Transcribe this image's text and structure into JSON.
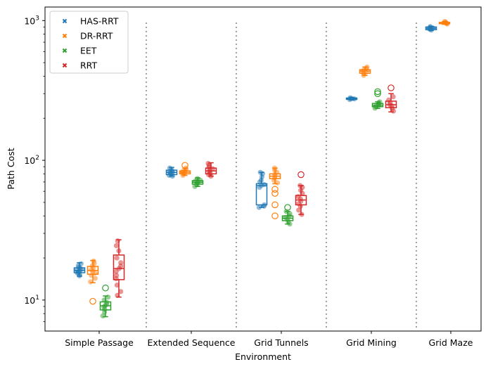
{
  "chart_data": {
    "type": "boxplot",
    "xlabel": "Environment",
    "ylabel": "Path Cost",
    "yscale": "log",
    "ylim": [
      6,
      1250
    ],
    "y_ticks": [
      {
        "value": 10,
        "base": "10",
        "exp": "1"
      },
      {
        "value": 100,
        "base": "10",
        "exp": "2"
      },
      {
        "value": 1000,
        "base": "10",
        "exp": "3"
      }
    ],
    "categories": [
      "Simple Passage",
      "Extended Sequence",
      "Grid Tunnels",
      "Grid Mining",
      "Grid Maze"
    ],
    "legend": [
      {
        "name": "HAS-RRT",
        "color": "#1f77b4"
      },
      {
        "name": "DR-RRT",
        "color": "#ff7f0e"
      },
      {
        "name": "EET",
        "color": "#2ca02c"
      },
      {
        "name": "RRT",
        "color": "#d62728"
      }
    ],
    "series": [
      {
        "name": "HAS-RRT",
        "color": "#1f77b4",
        "boxes": [
          {
            "category": "Simple Passage",
            "whisker_low": 14.8,
            "q1": 15.7,
            "median": 16.3,
            "q3": 17.0,
            "whisker_high": 18.5,
            "outliers": [],
            "points": [
              14.9,
              15.2,
              15.6,
              15.8,
              16.0,
              16.2,
              16.4,
              16.6,
              16.9,
              17.2,
              17.6,
              18.2
            ]
          },
          {
            "category": "Extended Sequence",
            "whisker_low": 77,
            "q1": 79,
            "median": 82,
            "q3": 85,
            "whisker_high": 89,
            "outliers": [],
            "points": [
              77,
              78,
              80,
              81,
              82,
              83,
              84,
              86,
              88
            ]
          },
          {
            "category": "Grid Tunnels",
            "whisker_low": 46,
            "q1": 48,
            "median": 66,
            "q3": 68,
            "whisker_high": 82,
            "outliers": [],
            "points": [
              46,
              47,
              48,
              64,
              66,
              67,
              70,
              72,
              76,
              80,
              82
            ]
          },
          {
            "category": "Grid Mining",
            "whisker_low": 270,
            "q1": 273,
            "median": 276,
            "q3": 279,
            "whisker_high": 282,
            "outliers": [],
            "points": [
              272,
              275,
              277,
              280
            ]
          },
          {
            "category": "Grid Maze",
            "whisker_low": 850,
            "q1": 860,
            "median": 880,
            "q3": 900,
            "whisker_high": 910,
            "outliers": [],
            "points": [
              855,
              865,
              875,
              885,
              895,
              905
            ]
          }
        ]
      },
      {
        "name": "DR-RRT",
        "color": "#ff7f0e",
        "boxes": [
          {
            "category": "Simple Passage",
            "whisker_low": 13.3,
            "q1": 15.3,
            "median": 16.3,
            "q3": 17.4,
            "whisker_high": 19.2,
            "outliers": [
              9.8
            ],
            "points": [
              13.5,
              14.3,
              15.0,
              15.6,
              16.0,
              16.5,
              17.0,
              17.6,
              18.3,
              19.0
            ]
          },
          {
            "category": "Extended Sequence",
            "whisker_low": 78,
            "q1": 80,
            "median": 82,
            "q3": 84,
            "whisker_high": 88,
            "outliers": [
              92
            ],
            "points": [
              78,
              80,
              81,
              82,
              83,
              84,
              86,
              88
            ]
          },
          {
            "category": "Grid Tunnels",
            "whisker_low": 68,
            "q1": 74,
            "median": 77,
            "q3": 80,
            "whisker_high": 88,
            "outliers": [
              62,
              58,
              48,
              40
            ],
            "points": [
              69,
              72,
              75,
              77,
              79,
              82,
              85,
              88
            ]
          },
          {
            "category": "Grid Mining",
            "whisker_low": 405,
            "q1": 420,
            "median": 435,
            "q3": 445,
            "whisker_high": 465,
            "outliers": [],
            "points": [
              405,
              418,
              428,
              435,
              442,
              455,
              465
            ]
          },
          {
            "category": "Grid Maze",
            "whisker_low": 940,
            "q1": 950,
            "median": 960,
            "q3": 970,
            "whisker_high": 985,
            "outliers": [],
            "points": [
              945,
              955,
              960,
              965,
              975,
              985
            ]
          }
        ]
      },
      {
        "name": "EET",
        "color": "#2ca02c",
        "boxes": [
          {
            "category": "Simple Passage",
            "whisker_low": 7.6,
            "q1": 8.5,
            "median": 9.1,
            "q3": 9.7,
            "whisker_high": 10.7,
            "outliers": [
              12.2
            ],
            "points": [
              7.7,
              8.2,
              8.6,
              8.9,
              9.1,
              9.3,
              9.6,
              10.0,
              10.5
            ]
          },
          {
            "category": "Extended Sequence",
            "whisker_low": 65,
            "q1": 67.5,
            "median": 69.5,
            "q3": 71.5,
            "whisker_high": 75,
            "outliers": [],
            "points": [
              65,
              67,
              69,
              70,
              71,
              72,
              74
            ]
          },
          {
            "category": "Grid Tunnels",
            "whisker_low": 35,
            "q1": 37,
            "median": 38.5,
            "q3": 40,
            "whisker_high": 43,
            "outliers": [
              46
            ],
            "points": [
              35,
              36.5,
              38,
              39,
              40,
              41.5,
              43
            ]
          },
          {
            "category": "Grid Mining",
            "whisker_low": 235,
            "q1": 242,
            "median": 248,
            "q3": 255,
            "whisker_high": 262,
            "outliers": [
              300,
              310
            ],
            "points": [
              236,
              243,
              248,
              252,
              258,
              262
            ]
          }
        ]
      },
      {
        "name": "RRT",
        "color": "#d62728",
        "boxes": [
          {
            "category": "Simple Passage",
            "whisker_low": 10.5,
            "q1": 14,
            "median": 16.8,
            "q3": 21,
            "whisker_high": 27,
            "outliers": [],
            "points": [
              10.8,
              11.5,
              12.8,
              14.2,
              15.0,
              16.0,
              16.8,
              17.5,
              18.5,
              20.0,
              22.5,
              24.5,
              26.5
            ]
          },
          {
            "category": "Extended Sequence",
            "whisker_low": 77,
            "q1": 80,
            "median": 84,
            "q3": 88,
            "whisker_high": 96,
            "outliers": [],
            "points": [
              77,
              79,
              81,
              83,
              85,
              87,
              89,
              92,
              95
            ]
          },
          {
            "category": "Grid Tunnels",
            "whisker_low": 41,
            "q1": 48,
            "median": 52,
            "q3": 56,
            "whisker_high": 66,
            "outliers": [
              79
            ],
            "points": [
              41,
              44,
              47,
              49,
              51,
              53,
              55,
              58,
              61,
              64,
              66
            ]
          },
          {
            "category": "Grid Mining",
            "whisker_low": 222,
            "q1": 238,
            "median": 250,
            "q3": 265,
            "whisker_high": 300,
            "outliers": [
              330
            ],
            "points": [
              225,
              235,
              245,
              250,
              258,
              270,
              285
            ]
          }
        ]
      }
    ]
  }
}
